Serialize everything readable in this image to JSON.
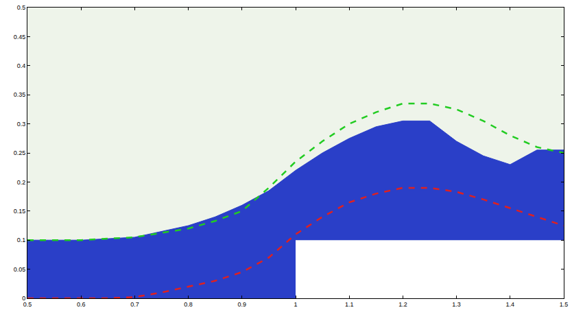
{
  "chart_data": {
    "type": "line",
    "xlim": [
      0.5,
      1.5
    ],
    "ylim": [
      0,
      0.5
    ],
    "xticks": [
      0.5,
      0.6,
      0.7,
      0.8,
      0.9,
      1,
      1.1,
      1.2,
      1.3,
      1.4,
      1.5
    ],
    "yticks": [
      0,
      0.05,
      0.1,
      0.15,
      0.2,
      0.25,
      0.3,
      0.35,
      0.4,
      0.45,
      0.5
    ],
    "grid": false,
    "series": [
      {
        "type": "area",
        "color": "#ffffff",
        "x": [
          0.5,
          1.0,
          1.0,
          1.5
        ],
        "values": [
          0,
          0,
          0.1,
          0.1
        ]
      },
      {
        "type": "band",
        "color": "#2a3fc8",
        "x": [
          0.5,
          0.6,
          0.7,
          0.8,
          0.85,
          0.9,
          0.95,
          1.0,
          1.0,
          1.05,
          1.1,
          1.15,
          1.2,
          1.25,
          1.3,
          1.35,
          1.4,
          1.45,
          1.5
        ],
        "values": [
          0.1,
          0.1,
          0.105,
          0.125,
          0.14,
          0.16,
          0.185,
          0.22,
          0.22,
          0.25,
          0.275,
          0.295,
          0.305,
          0.305,
          0.27,
          0.245,
          0.23,
          0.255,
          0.255
        ]
      },
      {
        "type": "line",
        "color": "#22cc22",
        "line_style": "dashed",
        "x": [
          0.5,
          0.6,
          0.7,
          0.8,
          0.85,
          0.9,
          0.95,
          1.0,
          1.05,
          1.1,
          1.15,
          1.2,
          1.25,
          1.3,
          1.35,
          1.4,
          1.45,
          1.5
        ],
        "values": [
          0.1,
          0.1,
          0.105,
          0.12,
          0.133,
          0.15,
          0.19,
          0.235,
          0.27,
          0.3,
          0.32,
          0.335,
          0.335,
          0.325,
          0.305,
          0.28,
          0.26,
          0.25
        ]
      },
      {
        "type": "line",
        "color": "#e02020",
        "line_style": "dashed",
        "x": [
          0.5,
          0.6,
          0.65,
          0.7,
          0.75,
          0.8,
          0.85,
          0.9,
          0.95,
          1.0,
          1.05,
          1.1,
          1.15,
          1.2,
          1.25,
          1.3,
          1.35,
          1.4,
          1.45,
          1.5
        ],
        "values": [
          0,
          0,
          0,
          0.002,
          0.01,
          0.02,
          0.03,
          0.045,
          0.07,
          0.11,
          0.14,
          0.165,
          0.18,
          0.19,
          0.19,
          0.183,
          0.17,
          0.155,
          0.14,
          0.125
        ]
      }
    ]
  }
}
